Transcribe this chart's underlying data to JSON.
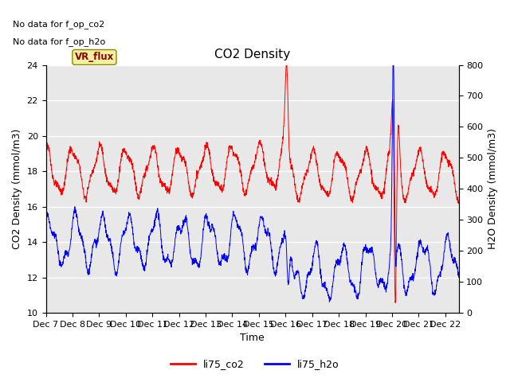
{
  "title": "CO2 Density",
  "xlabel": "Time",
  "ylabel_left": "CO2 Density (mmol/m3)",
  "ylabel_right": "H2O Density (mmol/m3)",
  "xlim_days": [
    0,
    15.5
  ],
  "ylim_left": [
    10,
    24
  ],
  "ylim_right": [
    0,
    800
  ],
  "yticks_left": [
    10,
    12,
    14,
    16,
    18,
    20,
    22,
    24
  ],
  "yticks_right": [
    0,
    100,
    200,
    300,
    400,
    500,
    600,
    700,
    800
  ],
  "xtick_labels": [
    "Dec 7",
    "Dec 8",
    "Dec 9",
    "Dec 10",
    "Dec 11",
    "Dec 12",
    "Dec 13",
    "Dec 14",
    "Dec 15",
    "Dec 16",
    "Dec 17",
    "Dec 18",
    "Dec 19",
    "Dec 20",
    "Dec 21",
    "Dec 22"
  ],
  "no_data_text1": "No data for f_op_co2",
  "no_data_text2": "No data for f_op_h2o",
  "vr_flux_label": "VR_flux",
  "legend_entries": [
    "li75_co2",
    "li75_h2o"
  ],
  "legend_colors": [
    "red",
    "blue"
  ],
  "co2_color": "red",
  "h2o_color": "blue",
  "background_color": "#e8e8e8",
  "grid_color": "white",
  "title_fontsize": 11,
  "label_fontsize": 9,
  "tick_fontsize": 8,
  "figsize": [
    6.4,
    4.8
  ],
  "dpi": 100
}
